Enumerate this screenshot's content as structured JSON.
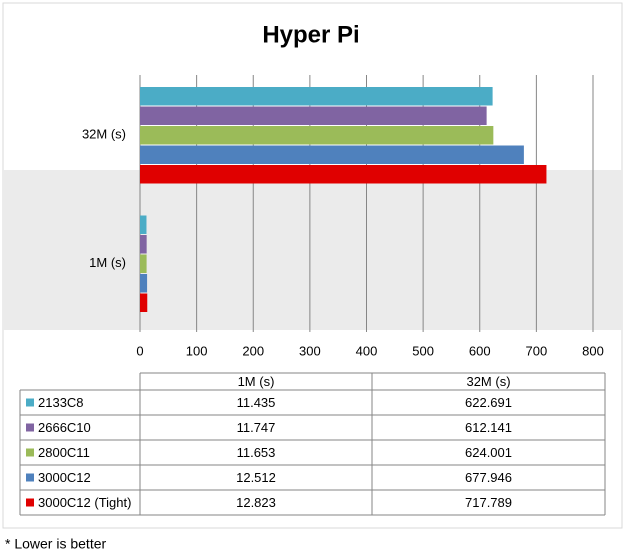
{
  "chart_data": {
    "type": "bar",
    "orientation": "horizontal",
    "title": "Hyper Pi",
    "categories": [
      "1M (s)",
      "32M (s)"
    ],
    "series": [
      {
        "name": "2133C8",
        "color": "#4bacc6",
        "values": [
          11.435,
          622.691
        ]
      },
      {
        "name": "2666C10",
        "color": "#8064a2",
        "values": [
          11.747,
          612.141
        ]
      },
      {
        "name": "2800C11",
        "color": "#9bbb59",
        "values": [
          11.653,
          624.001
        ]
      },
      {
        "name": "3000C12",
        "color": "#4f81bd",
        "values": [
          12.512,
          677.946
        ]
      },
      {
        "name": "3000C12 (Tight)",
        "color": "#e00000",
        "values": [
          12.823,
          717.789
        ]
      }
    ],
    "xlim": [
      0,
      800
    ],
    "xticks": [
      0,
      100,
      200,
      300,
      400,
      500,
      600,
      700,
      800
    ],
    "grid": true,
    "data_table": true,
    "footnote": "* Lower is better"
  }
}
